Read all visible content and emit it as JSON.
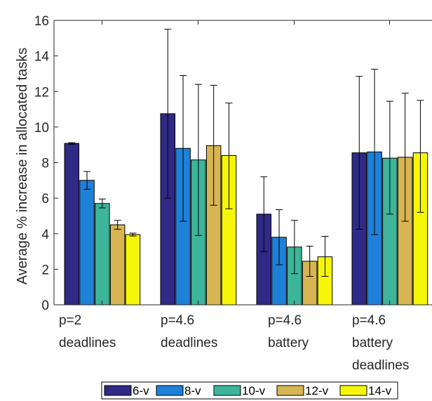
{
  "chart_data": {
    "type": "bar",
    "title": "",
    "xlabel": "",
    "ylabel": "Average % increase in allocated tasks",
    "ylim": [
      0,
      16
    ],
    "yticks": [
      0,
      2,
      4,
      6,
      8,
      10,
      12,
      14,
      16
    ],
    "grid": false,
    "legend_position": "bottom",
    "categories": [
      [
        "p=2",
        "deadlines"
      ],
      [
        "p=4.6",
        "deadlines"
      ],
      [
        "p=4.6",
        "battery"
      ],
      [
        "p=4.6",
        "battery",
        "deadlines"
      ]
    ],
    "series": [
      {
        "name": "6-v",
        "color": "#2e2a85",
        "values": [
          9.08,
          10.75,
          5.1,
          8.55
        ],
        "err_low": [
          9.03,
          6.0,
          3.0,
          4.25
        ],
        "err_high": [
          9.12,
          15.5,
          7.2,
          12.85
        ]
      },
      {
        "name": "8-v",
        "color": "#1f80d8",
        "values": [
          7.0,
          8.8,
          3.8,
          8.6
        ],
        "err_low": [
          6.5,
          4.7,
          2.25,
          3.95
        ],
        "err_high": [
          7.5,
          12.9,
          5.35,
          13.25
        ]
      },
      {
        "name": "10-v",
        "color": "#3cb59b",
        "values": [
          5.7,
          8.15,
          3.25,
          8.25
        ],
        "err_low": [
          5.45,
          3.9,
          1.75,
          5.1
        ],
        "err_high": [
          5.95,
          12.4,
          4.75,
          11.45
        ]
      },
      {
        "name": "12-v",
        "color": "#d6b552",
        "values": [
          4.5,
          8.95,
          2.45,
          8.3
        ],
        "err_low": [
          4.25,
          5.6,
          1.6,
          4.7
        ],
        "err_high": [
          4.75,
          12.35,
          3.3,
          11.9
        ]
      },
      {
        "name": "14-v",
        "color": "#f6f708",
        "values": [
          3.95,
          8.4,
          2.7,
          8.55
        ],
        "err_low": [
          3.87,
          5.4,
          1.6,
          5.2
        ],
        "err_high": [
          4.03,
          11.35,
          3.85,
          11.5
        ]
      }
    ]
  }
}
